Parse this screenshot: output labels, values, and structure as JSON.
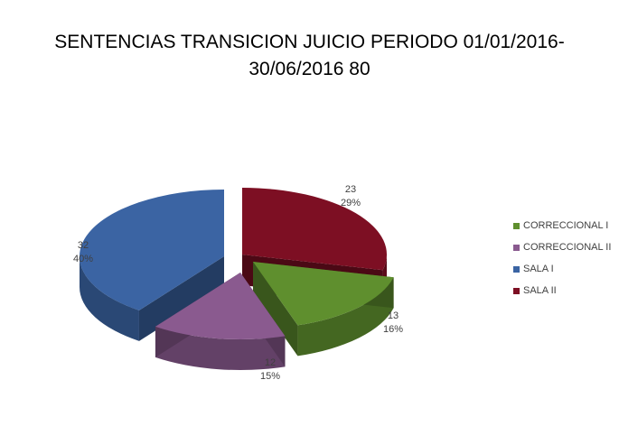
{
  "chart_data": {
    "type": "pie",
    "title_line1": "SENTENCIAS TRANSICION JUICIO PERIODO 01/01/2016-",
    "title_line2": "30/06/2016 80",
    "slices": [
      {
        "name": "CORRECCIONAL I",
        "value": 13,
        "percent": "16%",
        "color": "#5f8f2e"
      },
      {
        "name": "CORRECCIONAL II",
        "value": 12,
        "percent": "15%",
        "color": "#8a5a8f"
      },
      {
        "name": "SALA I",
        "value": 32,
        "percent": "40%",
        "color": "#3b64a3"
      },
      {
        "name": "SALA II",
        "value": 23,
        "percent": "29%",
        "color": "#7d0f23"
      }
    ],
    "legend_position": "right",
    "exploded": true,
    "style": "3d"
  }
}
